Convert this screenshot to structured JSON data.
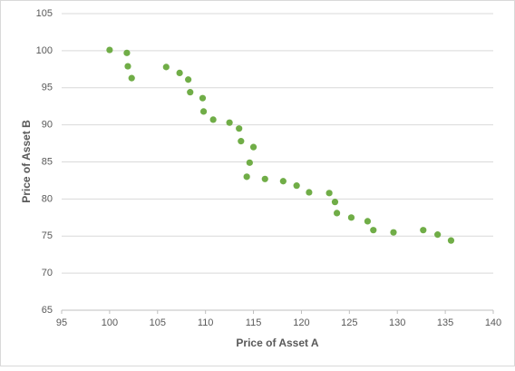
{
  "chart_data": {
    "type": "scatter",
    "x_label": "Price of Asset A",
    "y_label": "Price of Asset B",
    "xlim": [
      95,
      140
    ],
    "xticks": [
      95,
      100,
      105,
      110,
      115,
      120,
      125,
      130,
      135,
      140
    ],
    "ylim": [
      65,
      105
    ],
    "yticks": [
      65,
      70,
      75,
      80,
      85,
      90,
      95,
      100,
      105
    ],
    "grid": true,
    "color": "#70ad47",
    "x": [
      100.0,
      101.8,
      101.9,
      102.3,
      105.9,
      107.3,
      108.2,
      108.4,
      109.7,
      109.8,
      110.8,
      112.5,
      113.5,
      113.7,
      115.0,
      114.6,
      114.3,
      116.2,
      118.1,
      119.5,
      120.8,
      122.9,
      123.5,
      123.7,
      125.2,
      126.9,
      127.5,
      129.6,
      132.7,
      134.2,
      135.6
    ],
    "values": [
      100.1,
      99.7,
      97.9,
      96.3,
      97.8,
      97.0,
      96.1,
      94.4,
      93.6,
      91.8,
      90.7,
      90.3,
      89.5,
      87.8,
      87.0,
      84.9,
      83.0,
      82.7,
      82.4,
      81.8,
      80.9,
      80.8,
      79.6,
      78.1,
      77.5,
      77.0,
      75.8,
      75.5,
      75.8,
      75.2,
      74.4
    ]
  }
}
